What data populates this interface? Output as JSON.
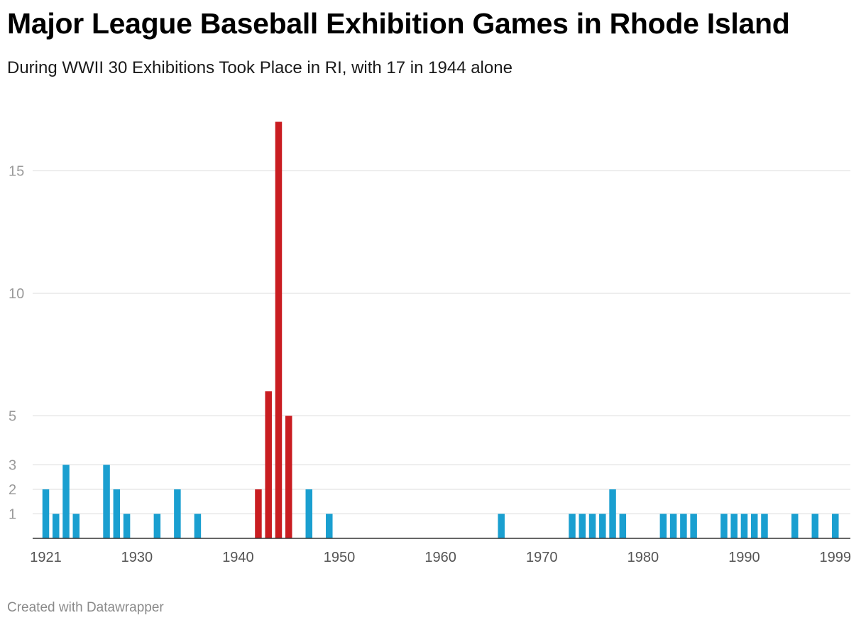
{
  "title": "Major League Baseball Exhibition Games in Rhode Island",
  "subtitle": "During WWII 30 Exhibitions Took Place in RI, with 17 in 1944 alone",
  "footer": "Created with Datawrapper",
  "colors": {
    "default_bar": "#1a9fd0",
    "highlight_bar": "#c91d21",
    "grid": "#e3e3e3",
    "baseline": "#333333"
  },
  "chart_data": {
    "type": "bar",
    "title": "Major League Baseball Exhibition Games in Rhode Island",
    "subtitle": "During WWII 30 Exhibitions Took Place in RI, with 17 in 1944 alone",
    "xlabel": "",
    "ylabel": "",
    "xlim": [
      1921,
      1999
    ],
    "ylim": [
      0,
      17
    ],
    "y_ticks": [
      1,
      2,
      3,
      5,
      10,
      15
    ],
    "x_ticks": [
      1921,
      1930,
      1940,
      1950,
      1960,
      1970,
      1980,
      1990,
      1999
    ],
    "grid": true,
    "legend": "none",
    "highlight": {
      "years": [
        1942,
        1943,
        1944,
        1945
      ],
      "color": "#c91d21"
    },
    "data": [
      {
        "x": 1921,
        "y": 2
      },
      {
        "x": 1922,
        "y": 1
      },
      {
        "x": 1923,
        "y": 3
      },
      {
        "x": 1924,
        "y": 1
      },
      {
        "x": 1927,
        "y": 3
      },
      {
        "x": 1928,
        "y": 2
      },
      {
        "x": 1929,
        "y": 1
      },
      {
        "x": 1932,
        "y": 1
      },
      {
        "x": 1934,
        "y": 2
      },
      {
        "x": 1936,
        "y": 1
      },
      {
        "x": 1942,
        "y": 2
      },
      {
        "x": 1943,
        "y": 6
      },
      {
        "x": 1944,
        "y": 17
      },
      {
        "x": 1945,
        "y": 5
      },
      {
        "x": 1947,
        "y": 2
      },
      {
        "x": 1949,
        "y": 1
      },
      {
        "x": 1966,
        "y": 1
      },
      {
        "x": 1973,
        "y": 1
      },
      {
        "x": 1974,
        "y": 1
      },
      {
        "x": 1975,
        "y": 1
      },
      {
        "x": 1976,
        "y": 1
      },
      {
        "x": 1977,
        "y": 2
      },
      {
        "x": 1978,
        "y": 1
      },
      {
        "x": 1982,
        "y": 1
      },
      {
        "x": 1983,
        "y": 1
      },
      {
        "x": 1984,
        "y": 1
      },
      {
        "x": 1985,
        "y": 1
      },
      {
        "x": 1988,
        "y": 1
      },
      {
        "x": 1989,
        "y": 1
      },
      {
        "x": 1990,
        "y": 1
      },
      {
        "x": 1991,
        "y": 1
      },
      {
        "x": 1992,
        "y": 1
      },
      {
        "x": 1995,
        "y": 1
      },
      {
        "x": 1997,
        "y": 1
      },
      {
        "x": 1999,
        "y": 1
      }
    ]
  }
}
